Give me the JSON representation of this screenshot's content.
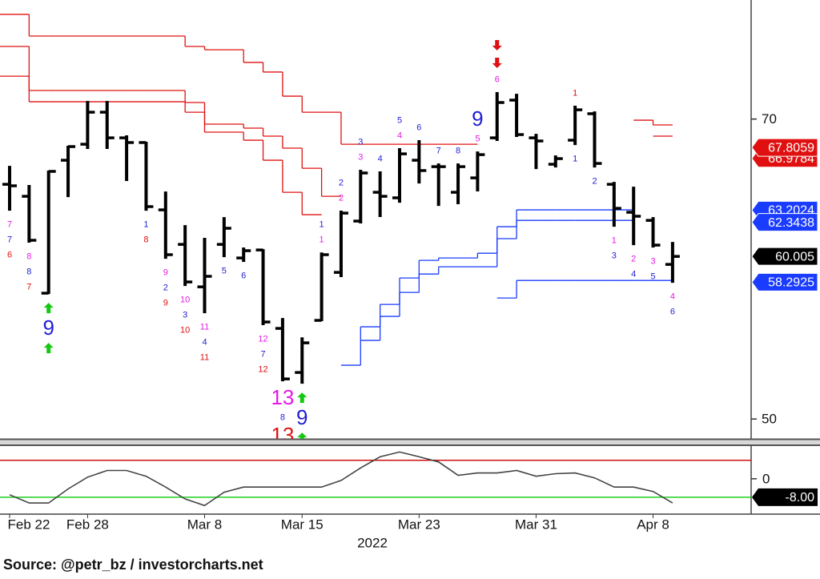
{
  "chart_data": [
    {
      "type": "ohlc",
      "log_scale": true,
      "ylim": [
        48.9,
        80
      ],
      "yticks": [
        50,
        70
      ],
      "open": [
        65.06,
        64.19,
        57.58,
        66.84,
        68.05,
        70.54,
        68.54,
        68.18,
        63.22,
        60.82,
        57.99,
        60.82,
        59.9,
        60.44,
        55.35,
        52.68,
        55.85,
        58.94,
        62.43,
        64.48,
        64.08,
        66.84,
        66.36,
        64.48,
        65.53,
        68.54,
        71.5,
        68.54,
        66.54,
        68.36,
        70.42,
        65.06,
        63.05,
        62.48,
        59.47
      ],
      "high": [
        66.36,
        64.95,
        66.01,
        67.87,
        71.37,
        71.37,
        68.67,
        68.18,
        64.48,
        62.09,
        61.21,
        62.65,
        60.55,
        60.44,
        55.95,
        54.75,
        60.22,
        63.11,
        66.07,
        65.95,
        67.69,
        68.3,
        66.54,
        66.54,
        67.44,
        72.08,
        71.95,
        68.79,
        67.14,
        70.99,
        70.54,
        65.18,
        64.83,
        62.65,
        60.93
      ],
      "low": [
        63.22,
        60.99,
        57.58,
        64.19,
        67.75,
        67.75,
        65.36,
        63.22,
        59.9,
        58.1,
        56.35,
        60.01,
        59.69,
        55.6,
        52.21,
        52.07,
        55.85,
        58.68,
        62.32,
        62.77,
        63.79,
        65.18,
        63.56,
        63.68,
        64.6,
        68.36,
        68.67,
        66.24,
        66.36,
        68.05,
        66.36,
        62.09,
        60.82,
        60.66,
        58.31
      ],
      "close": [
        64.95,
        61.1,
        66.01,
        67.87,
        70.54,
        68.54,
        68.18,
        63.45,
        60.12,
        58.31,
        58.68,
        61.93,
        60.39,
        55.75,
        52.3,
        54.46,
        60.12,
        62.99,
        65.89,
        64.19,
        67.32,
        66.07,
        66.36,
        66.36,
        67.26,
        71.31,
        68.79,
        68.3,
        66.96,
        70.73,
        66.6,
        63.33,
        62.77,
        60.77,
        60.005
      ],
      "step_lines": [
        {
          "color": "#e01010",
          "values": [
            78.72,
            76.83,
            76.83,
            76.83,
            76.83,
            76.83,
            76.83,
            76.83,
            76.83,
            75.94,
            75.66,
            75.66,
            74.59,
            73.79,
            71.82,
            70.54,
            70.54,
            68.05,
            68.05,
            68.05,
            68.05,
            68.05,
            68.05,
            68.05,
            null,
            null,
            null,
            null,
            null,
            null,
            null,
            null,
            null,
            null,
            null
          ]
        },
        {
          "color": "#e01010",
          "values": [
            75.94,
            72.28,
            72.28,
            72.28,
            72.28,
            72.28,
            72.28,
            72.28,
            72.28,
            71.31,
            69.6,
            69.6,
            69.29,
            68.67,
            67.75,
            66.24,
            64.19,
            null,
            null,
            null,
            null,
            null,
            null,
            null,
            null,
            null,
            null,
            null,
            null,
            null,
            null,
            null,
            null,
            null,
            null
          ]
        },
        {
          "color": "#e01010",
          "values": [
            73.45,
            71.37,
            71.37,
            71.37,
            71.37,
            71.37,
            71.37,
            71.37,
            71.37,
            70.54,
            68.98,
            68.98,
            68.36,
            66.84,
            64.48,
            62.88,
            null,
            null,
            null,
            null,
            null,
            null,
            null,
            null,
            null,
            null,
            null,
            null,
            null,
            null,
            null,
            null,
            null,
            null,
            null
          ]
        },
        {
          "color": "#e01010",
          "values": [
            null,
            null,
            null,
            null,
            null,
            null,
            null,
            null,
            null,
            null,
            null,
            null,
            null,
            null,
            null,
            null,
            null,
            null,
            null,
            null,
            null,
            null,
            null,
            null,
            null,
            null,
            null,
            null,
            null,
            null,
            null,
            null,
            69.91,
            69.54,
            null
          ]
        },
        {
          "color": "#e01010",
          "values": [
            null,
            null,
            null,
            null,
            null,
            null,
            null,
            null,
            null,
            null,
            null,
            null,
            null,
            null,
            null,
            null,
            null,
            null,
            null,
            null,
            null,
            null,
            null,
            null,
            null,
            null,
            null,
            null,
            null,
            null,
            null,
            null,
            null,
            68.67,
            null
          ]
        },
        {
          "color": "#1a3cff",
          "values": [
            null,
            null,
            null,
            null,
            null,
            null,
            null,
            null,
            null,
            null,
            null,
            null,
            null,
            null,
            null,
            null,
            null,
            53.11,
            55.45,
            56.86,
            58.57,
            59.74,
            59.9,
            59.9,
            60.22,
            62.04,
            63.22,
            63.22,
            63.22,
            63.22,
            63.22,
            63.22,
            null,
            null,
            null
          ]
        },
        {
          "color": "#1a3cff",
          "values": [
            null,
            null,
            null,
            null,
            null,
            null,
            null,
            null,
            null,
            null,
            null,
            null,
            null,
            null,
            null,
            null,
            null,
            null,
            54.61,
            56.1,
            57.63,
            58.83,
            59.31,
            59.31,
            59.31,
            61.21,
            62.48,
            62.48,
            62.48,
            62.48,
            62.48,
            62.48,
            null,
            null,
            null
          ]
        },
        {
          "color": "#1a3cff",
          "values": [
            null,
            null,
            null,
            null,
            null,
            null,
            null,
            null,
            null,
            null,
            null,
            null,
            null,
            null,
            null,
            null,
            null,
            null,
            null,
            null,
            null,
            null,
            null,
            null,
            null,
            57.27,
            58.41,
            58.41,
            58.41,
            58.41,
            58.41,
            58.41,
            58.41,
            58.41,
            null
          ]
        }
      ],
      "price_labels": [
        {
          "value": 66.9784,
          "color": "#e01010"
        },
        {
          "value": 67.8059,
          "color": "#e01010"
        },
        {
          "value": 63.2024,
          "color": "#1a3cff"
        },
        {
          "value": 62.3438,
          "color": "#1a3cff"
        },
        {
          "value": 58.2925,
          "color": "#1a3cff"
        }
      ],
      "annotations": [
        {
          "bar": 0,
          "side": "below",
          "items": [
            {
              "text": "7",
              "color": "#e619e6"
            },
            {
              "text": "7",
              "color": "#1f1fd6"
            },
            {
              "text": "6",
              "color": "#e01010"
            }
          ]
        },
        {
          "bar": 1,
          "side": "below",
          "items": [
            {
              "text": "8",
              "color": "#e619e6"
            },
            {
              "text": "8",
              "color": "#1f1fd6"
            },
            {
              "text": "7",
              "color": "#e01010"
            }
          ]
        },
        {
          "bar": 2,
          "side": "below",
          "items": [
            {
              "arrow": "up",
              "color": "#14c814"
            },
            {
              "text": "9",
              "color": "#1f1fd6",
              "large": true
            },
            {
              "arrow": "up",
              "color": "#14c814"
            }
          ]
        },
        {
          "bar": 7,
          "side": "below",
          "items": [
            {
              "text": "1",
              "color": "#1f1fd6"
            },
            {
              "text": "8",
              "color": "#e01010"
            }
          ]
        },
        {
          "bar": 8,
          "side": "below",
          "items": [
            {
              "text": "9",
              "color": "#e619e6"
            },
            {
              "text": "2",
              "color": "#1f1fd6"
            },
            {
              "text": "9",
              "color": "#e01010"
            }
          ]
        },
        {
          "bar": 9,
          "side": "below",
          "items": [
            {
              "text": "10",
              "color": "#e619e6"
            },
            {
              "text": "3",
              "color": "#1f1fd6"
            },
            {
              "text": "10",
              "color": "#e01010"
            }
          ]
        },
        {
          "bar": 10,
          "side": "below",
          "items": [
            {
              "text": "11",
              "color": "#e619e6"
            },
            {
              "text": "4",
              "color": "#1f1fd6"
            },
            {
              "text": "11",
              "color": "#e01010"
            }
          ]
        },
        {
          "bar": 11,
          "side": "below",
          "items": [
            {
              "text": "5",
              "color": "#1f1fd6"
            }
          ]
        },
        {
          "bar": 12,
          "side": "below",
          "items": [
            {
              "text": "6",
              "color": "#1f1fd6"
            }
          ]
        },
        {
          "bar": 13,
          "side": "below",
          "items": [
            {
              "text": "12",
              "color": "#e619e6"
            },
            {
              "text": "7",
              "color": "#1f1fd6"
            },
            {
              "text": "12",
              "color": "#e01010"
            }
          ]
        },
        {
          "bar": 14,
          "side": "below",
          "items": [
            {
              "text": "13",
              "color": "#e619e6",
              "large": true
            },
            {
              "text": "8",
              "color": "#1f1fd6"
            },
            {
              "text": "13",
              "color": "#e01010",
              "large": true
            }
          ]
        },
        {
          "bar": 15,
          "side": "below",
          "items": [
            {
              "arrow": "up",
              "color": "#14c814"
            },
            {
              "text": "9",
              "color": "#1f1fd6",
              "large": true
            },
            {
              "arrow": "up",
              "color": "#14c814"
            }
          ]
        },
        {
          "bar": 16,
          "side": "above",
          "items": [
            {
              "text": "1",
              "color": "#1f1fd6"
            },
            {
              "text": "1",
              "color": "#e619e6"
            }
          ]
        },
        {
          "bar": 17,
          "side": "above",
          "items": [
            {
              "text": "2",
              "color": "#1f1fd6"
            },
            {
              "text": "2",
              "color": "#e619e6"
            }
          ]
        },
        {
          "bar": 18,
          "side": "above",
          "items": [
            {
              "text": "3",
              "color": "#1f1fd6"
            },
            {
              "text": "3",
              "color": "#e619e6"
            }
          ]
        },
        {
          "bar": 19,
          "side": "above",
          "items": [
            {
              "text": "4",
              "color": "#1f1fd6"
            }
          ]
        },
        {
          "bar": 20,
          "side": "above",
          "items": [
            {
              "text": "5",
              "color": "#1f1fd6"
            },
            {
              "text": "4",
              "color": "#e619e6"
            }
          ]
        },
        {
          "bar": 21,
          "side": "above",
          "items": [
            {
              "text": "6",
              "color": "#1f1fd6"
            }
          ]
        },
        {
          "bar": 22,
          "side": "above",
          "items": [
            {
              "text": "7",
              "color": "#1f1fd6"
            }
          ]
        },
        {
          "bar": 23,
          "side": "above",
          "items": [
            {
              "text": "8",
              "color": "#1f1fd6"
            }
          ]
        },
        {
          "bar": 24,
          "side": "above",
          "items": [
            {
              "text": "9",
              "color": "#1f1fd6",
              "large": true
            },
            {
              "text": "5",
              "color": "#e619e6"
            }
          ]
        },
        {
          "bar": 25,
          "side": "above",
          "items": [
            {
              "arrow": "down",
              "color": "#e01010"
            },
            {
              "arrow": "down",
              "color": "#e01010"
            },
            {
              "text": "6",
              "color": "#e619e6"
            }
          ]
        },
        {
          "bar": 29,
          "side": "above",
          "items": [
            {
              "text": "1",
              "color": "#e01010"
            }
          ]
        },
        {
          "bar": 29,
          "side": "below",
          "items": [
            {
              "text": "1",
              "color": "#1f1fd6"
            }
          ]
        },
        {
          "bar": 30,
          "side": "below",
          "items": [
            {
              "text": "2",
              "color": "#1f1fd6"
            }
          ]
        },
        {
          "bar": 31,
          "side": "below",
          "items": [
            {
              "text": "1",
              "color": "#e619e6"
            },
            {
              "text": "3",
              "color": "#1f1fd6"
            }
          ]
        },
        {
          "bar": 32,
          "side": "below",
          "items": [
            {
              "text": "2",
              "color": "#e619e6"
            },
            {
              "text": "4",
              "color": "#1f1fd6"
            }
          ]
        },
        {
          "bar": 33,
          "side": "below",
          "items": [
            {
              "text": "3",
              "color": "#e619e6"
            },
            {
              "text": "5",
              "color": "#1f1fd6"
            }
          ]
        },
        {
          "bar": 34,
          "side": "below",
          "items": [
            {
              "text": "4",
              "color": "#e619e6"
            },
            {
              "text": "6",
              "color": "#1f1fd6"
            }
          ]
        }
      ]
    },
    {
      "type": "line",
      "color": "#444444",
      "ylim": [
        -15.3,
        14.5
      ],
      "yticks": [
        0
      ],
      "categories": [
        "Feb 22",
        null,
        null,
        null,
        "Feb 28",
        null,
        null,
        null,
        null,
        null,
        "Mar 8",
        null,
        null,
        null,
        null,
        "Mar 15",
        null,
        null,
        null,
        null,
        null,
        "Mar 23",
        null,
        null,
        null,
        null,
        null,
        "Mar 31",
        null,
        null,
        null,
        null,
        null,
        "Apr 8",
        null
      ],
      "values": [
        -6.9,
        -10.5,
        -10.5,
        -4.4,
        0.7,
        3.6,
        3.6,
        1.1,
        -3.6,
        -8.7,
        -11.6,
        -5.8,
        -3.6,
        -3.6,
        -3.6,
        -3.6,
        -3.6,
        -0.7,
        4.7,
        9.5,
        11.6,
        9.5,
        7.3,
        1.5,
        2.5,
        2.5,
        3.6,
        1.1,
        2.2,
        2.5,
        0.4,
        -3.6,
        -3.6,
        -5.5,
        -10.5
      ],
      "hlines": [
        {
          "value": 8,
          "color": "#d01010"
        },
        {
          "value": -8,
          "color": "#20d020",
          "label": "-8.00"
        }
      ],
      "x_title": "2022"
    }
  ],
  "source": "Source:  @petr_bz / investorcharts.net"
}
